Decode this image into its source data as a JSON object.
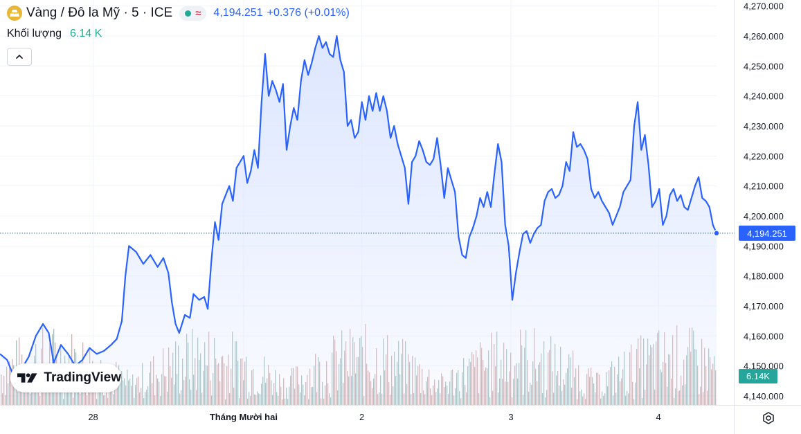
{
  "header": {
    "symbol_title": "Vàng / Đô la Mỹ · 5 · ICE",
    "last_price": "4,194.251",
    "change": "+0.376 (+0.01%)",
    "volume_label": "Khối lượng",
    "volume_value": "6.14 K",
    "symbol_icon": "gold-bar-icon"
  },
  "badges": {
    "last_price_tag": "4,194.251",
    "volume_tag": "6.14K"
  },
  "branding": {
    "logo_text": "TradingView"
  },
  "colors": {
    "line": "#2962ff",
    "area": "#dbe5ff",
    "volume_up": "#26a69a",
    "volume_down": "#ef5350",
    "last_price_tag": "#2962ff",
    "volume_tag": "#26a69a",
    "grid": "#f0f3fa"
  },
  "chart_data": {
    "type": "area",
    "title": "Vàng / Đô la Mỹ · 5 · ICE",
    "xlabel": "",
    "ylabel": "",
    "grid": true,
    "ylim": [
      4137,
      4272
    ],
    "y_ticks": [
      "4,140.000",
      "4,150.000",
      "4,160.000",
      "4,170.000",
      "4,180.000",
      "4,190.000",
      "4,200.000",
      "4,210.000",
      "4,220.000",
      "4,230.000",
      "4,240.000",
      "4,250.000",
      "4,260.000",
      "4,270.000"
    ],
    "y_tick_values": [
      4140,
      4150,
      4160,
      4170,
      4180,
      4190,
      4200,
      4210,
      4220,
      4230,
      4240,
      4250,
      4260,
      4270
    ],
    "x_ticks": [
      {
        "label": "28",
        "t": 0.13
      },
      {
        "label": "Tháng Mười hai",
        "t": 0.34
      },
      {
        "label": "2",
        "t": 0.505
      },
      {
        "label": "3",
        "t": 0.713
      },
      {
        "label": "4",
        "t": 0.919
      }
    ],
    "last_price": 4194.251,
    "series": [
      {
        "values": [
          [
            0.0,
            4154
          ],
          [
            0.01,
            4152
          ],
          [
            0.02,
            4146
          ],
          [
            0.03,
            4149
          ],
          [
            0.04,
            4153
          ],
          [
            0.05,
            4160
          ],
          [
            0.06,
            4164
          ],
          [
            0.068,
            4161
          ],
          [
            0.075,
            4151
          ],
          [
            0.085,
            4157
          ],
          [
            0.095,
            4154
          ],
          [
            0.105,
            4150
          ],
          [
            0.115,
            4152
          ],
          [
            0.125,
            4156
          ],
          [
            0.135,
            4154
          ],
          [
            0.145,
            4155
          ],
          [
            0.155,
            4157
          ],
          [
            0.163,
            4159
          ],
          [
            0.17,
            4165
          ],
          [
            0.175,
            4180
          ],
          [
            0.18,
            4190
          ],
          [
            0.19,
            4188
          ],
          [
            0.2,
            4184
          ],
          [
            0.21,
            4187
          ],
          [
            0.22,
            4183
          ],
          [
            0.228,
            4186
          ],
          [
            0.235,
            4181
          ],
          [
            0.24,
            4171
          ],
          [
            0.245,
            4164
          ],
          [
            0.25,
            4161
          ],
          [
            0.258,
            4167
          ],
          [
            0.265,
            4166
          ],
          [
            0.27,
            4174
          ],
          [
            0.278,
            4172
          ],
          [
            0.285,
            4173
          ],
          [
            0.29,
            4169
          ],
          [
            0.295,
            4185
          ],
          [
            0.3,
            4198
          ],
          [
            0.305,
            4192
          ],
          [
            0.31,
            4204
          ],
          [
            0.315,
            4207
          ],
          [
            0.32,
            4210
          ],
          [
            0.325,
            4205
          ],
          [
            0.33,
            4216
          ],
          [
            0.335,
            4218
          ],
          [
            0.34,
            4220
          ],
          [
            0.345,
            4211
          ],
          [
            0.35,
            4215
          ],
          [
            0.355,
            4222
          ],
          [
            0.36,
            4216
          ],
          [
            0.365,
            4238
          ],
          [
            0.37,
            4254
          ],
          [
            0.375,
            4240
          ],
          [
            0.38,
            4245
          ],
          [
            0.385,
            4242
          ],
          [
            0.39,
            4238
          ],
          [
            0.395,
            4244
          ],
          [
            0.4,
            4222
          ],
          [
            0.405,
            4230
          ],
          [
            0.41,
            4236
          ],
          [
            0.415,
            4232
          ],
          [
            0.42,
            4245
          ],
          [
            0.425,
            4252
          ],
          [
            0.43,
            4247
          ],
          [
            0.435,
            4251
          ],
          [
            0.44,
            4256
          ],
          [
            0.445,
            4260
          ],
          [
            0.45,
            4256
          ],
          [
            0.455,
            4258
          ],
          [
            0.46,
            4254
          ],
          [
            0.465,
            4253
          ],
          [
            0.47,
            4260
          ],
          [
            0.475,
            4252
          ],
          [
            0.48,
            4248
          ],
          [
            0.485,
            4230
          ],
          [
            0.49,
            4232
          ],
          [
            0.495,
            4226
          ],
          [
            0.5,
            4228
          ],
          [
            0.505,
            4238
          ],
          [
            0.51,
            4232
          ],
          [
            0.515,
            4240
          ],
          [
            0.52,
            4235
          ],
          [
            0.525,
            4241
          ],
          [
            0.53,
            4235
          ],
          [
            0.535,
            4240
          ],
          [
            0.54,
            4235
          ],
          [
            0.545,
            4226
          ],
          [
            0.55,
            4230
          ],
          [
            0.555,
            4224
          ],
          [
            0.56,
            4220
          ],
          [
            0.565,
            4216
          ],
          [
            0.57,
            4204
          ],
          [
            0.575,
            4218
          ],
          [
            0.58,
            4220
          ],
          [
            0.585,
            4225
          ],
          [
            0.59,
            4222
          ],
          [
            0.595,
            4218
          ],
          [
            0.6,
            4217
          ],
          [
            0.605,
            4219
          ],
          [
            0.61,
            4226
          ],
          [
            0.615,
            4217
          ],
          [
            0.62,
            4206
          ],
          [
            0.625,
            4216
          ],
          [
            0.63,
            4212
          ],
          [
            0.635,
            4208
          ],
          [
            0.64,
            4193
          ],
          [
            0.645,
            4187
          ],
          [
            0.65,
            4186
          ],
          [
            0.655,
            4193
          ],
          [
            0.66,
            4196
          ],
          [
            0.665,
            4200
          ],
          [
            0.67,
            4206
          ],
          [
            0.675,
            4203
          ],
          [
            0.68,
            4208
          ],
          [
            0.685,
            4203
          ],
          [
            0.69,
            4214
          ],
          [
            0.695,
            4224
          ],
          [
            0.7,
            4218
          ],
          [
            0.705,
            4197
          ],
          [
            0.71,
            4190
          ],
          [
            0.715,
            4172
          ],
          [
            0.72,
            4181
          ],
          [
            0.725,
            4188
          ],
          [
            0.73,
            4194
          ],
          [
            0.735,
            4195
          ],
          [
            0.74,
            4191
          ],
          [
            0.745,
            4194
          ],
          [
            0.75,
            4196
          ],
          [
            0.755,
            4197
          ],
          [
            0.76,
            4205
          ],
          [
            0.765,
            4208
          ],
          [
            0.77,
            4209
          ],
          [
            0.775,
            4206
          ],
          [
            0.78,
            4207
          ],
          [
            0.785,
            4210
          ],
          [
            0.79,
            4218
          ],
          [
            0.795,
            4215
          ],
          [
            0.8,
            4228
          ],
          [
            0.805,
            4223
          ],
          [
            0.81,
            4224
          ],
          [
            0.815,
            4222
          ],
          [
            0.82,
            4219
          ],
          [
            0.825,
            4209
          ],
          [
            0.83,
            4206
          ],
          [
            0.835,
            4208
          ],
          [
            0.84,
            4205
          ],
          [
            0.845,
            4203
          ],
          [
            0.85,
            4201
          ],
          [
            0.855,
            4197
          ],
          [
            0.86,
            4200
          ],
          [
            0.865,
            4203
          ],
          [
            0.87,
            4208
          ],
          [
            0.875,
            4210
          ],
          [
            0.88,
            4212
          ],
          [
            0.885,
            4230
          ],
          [
            0.89,
            4238
          ],
          [
            0.895,
            4222
          ],
          [
            0.9,
            4227
          ],
          [
            0.905,
            4217
          ],
          [
            0.91,
            4203
          ],
          [
            0.915,
            4205
          ],
          [
            0.92,
            4209
          ],
          [
            0.925,
            4197
          ],
          [
            0.93,
            4200
          ],
          [
            0.935,
            4207
          ],
          [
            0.94,
            4209
          ],
          [
            0.945,
            4205
          ],
          [
            0.95,
            4207
          ],
          [
            0.955,
            4203
          ],
          [
            0.96,
            4202
          ],
          [
            0.965,
            4206
          ],
          [
            0.97,
            4210
          ],
          [
            0.975,
            4213
          ],
          [
            0.98,
            4206
          ],
          [
            0.985,
            4205
          ],
          [
            0.99,
            4203
          ],
          [
            0.995,
            4197
          ],
          [
            1.0,
            4194.251
          ]
        ]
      }
    ]
  }
}
